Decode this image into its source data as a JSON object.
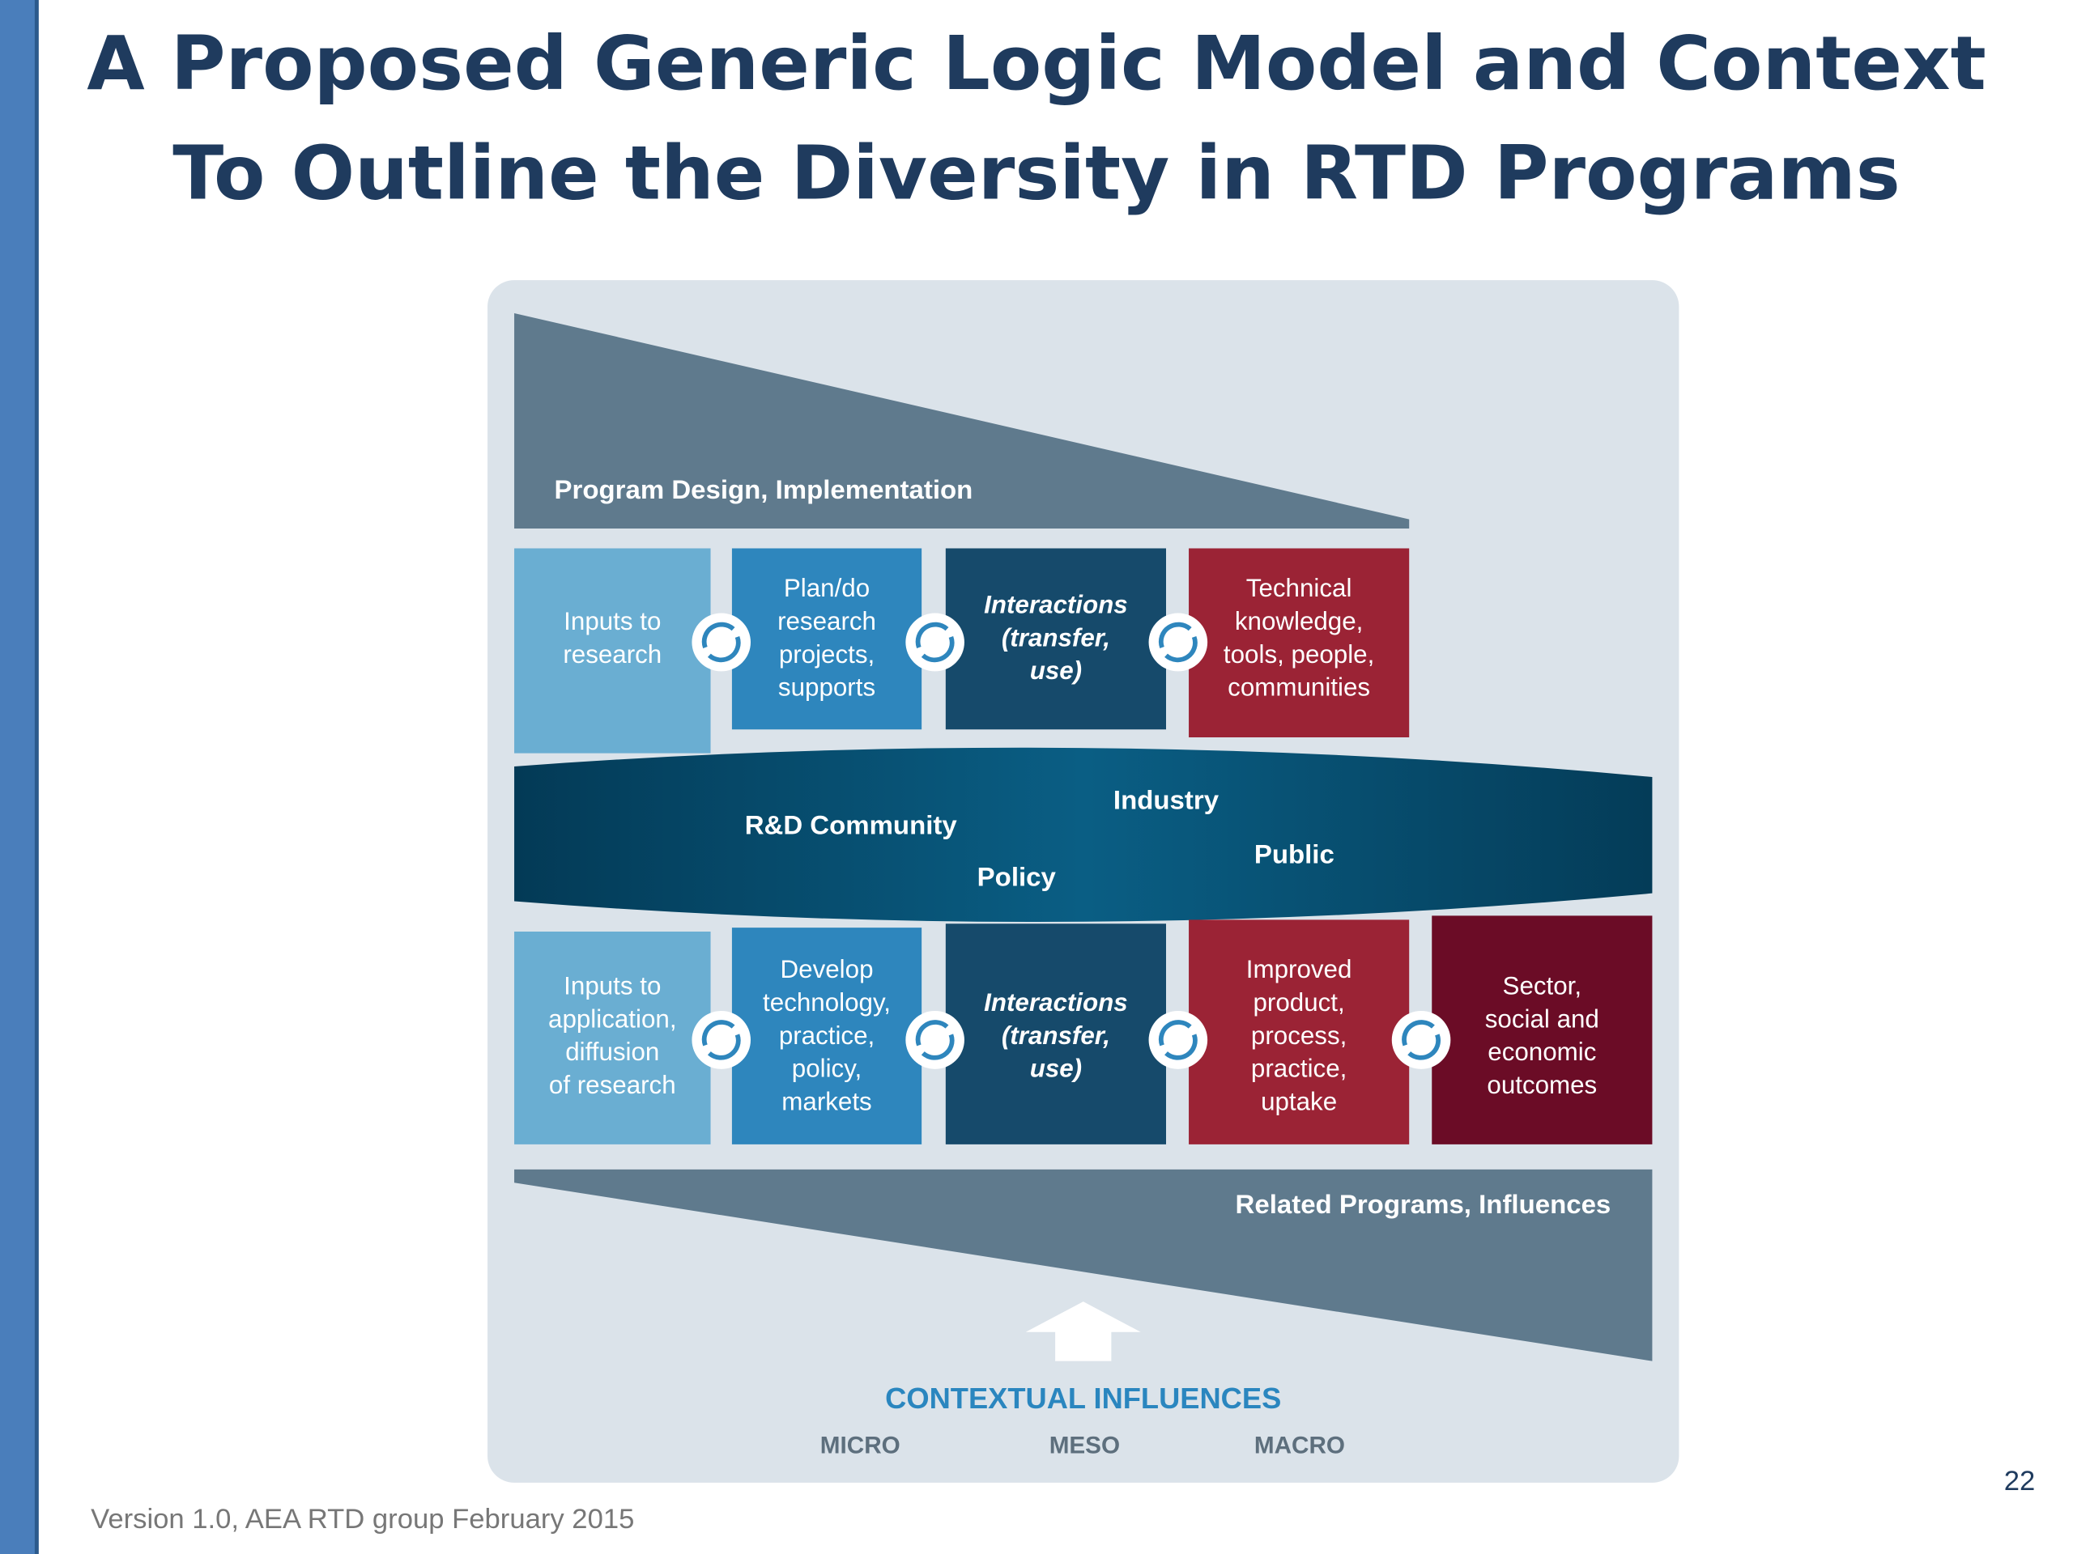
{
  "title": [
    "A Proposed Generic Logic Model and Context",
    "To Outline the Diversity in RTD Programs"
  ],
  "diagram": {
    "program_design": "Program Design, Implementation",
    "research_row": [
      {
        "lines": [
          "Inputs to",
          "research"
        ]
      },
      {
        "lines": [
          "Plan/do",
          "research",
          "projects,",
          "supports"
        ]
      },
      {
        "lines": [
          "Interactions",
          "(transfer,",
          "use)"
        ]
      },
      {
        "lines": [
          "Technical",
          "knowledge,",
          "tools, people,",
          "communities"
        ]
      }
    ],
    "stakeholders": [
      "R&D Community",
      "Industry",
      "Policy",
      "Public"
    ],
    "application_row": [
      {
        "lines": [
          "Inputs to",
          "application,",
          "diffusion",
          "of research"
        ]
      },
      {
        "lines": [
          "Develop",
          "technology,",
          "practice,",
          "policy,",
          "markets"
        ]
      },
      {
        "lines": [
          "Interactions",
          "(transfer,",
          "use)"
        ]
      },
      {
        "lines": [
          "Improved",
          "product,",
          "process,",
          "practice,",
          "uptake"
        ]
      },
      {
        "lines": [
          "Sector,",
          "social and",
          "economic",
          "outcomes"
        ]
      }
    ],
    "related_programs": "Related Programs, Influences",
    "contextual": {
      "title": "CONTEXTUAL INFLUENCES",
      "levels": [
        "MICRO",
        "MESO",
        "MACRO"
      ]
    }
  },
  "footer": "Version 1.0, AEA RTD group February 2015",
  "page_number": "22"
}
